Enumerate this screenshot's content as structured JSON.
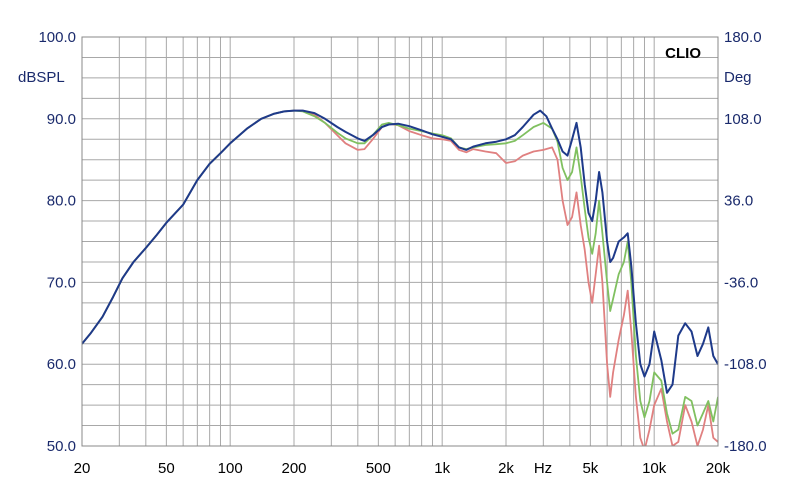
{
  "chart_data": {
    "type": "line",
    "title": "",
    "brand": "CLIO",
    "xlabel": "Hz",
    "ylabel": "dBSPL",
    "y2label": "Deg",
    "xscale": "log",
    "xlim": [
      20,
      20000
    ],
    "ylim": [
      50,
      100
    ],
    "y2lim": [
      -180,
      180
    ],
    "grid": true,
    "x_tick_labels": [
      {
        "value": 20,
        "label": "20"
      },
      {
        "value": 50,
        "label": "50"
      },
      {
        "value": 100,
        "label": "100"
      },
      {
        "value": 200,
        "label": "200"
      },
      {
        "value": 500,
        "label": "500"
      },
      {
        "value": 1000,
        "label": "1k"
      },
      {
        "value": 2000,
        "label": "2k"
      },
      {
        "value": 5000,
        "label": "5k"
      },
      {
        "value": 10000,
        "label": "10k"
      },
      {
        "value": 20000,
        "label": "20k"
      }
    ],
    "y_tick_labels": [
      "100.0",
      "90.0",
      "80.0",
      "70.0",
      "60.0",
      "50.0"
    ],
    "y2_tick_labels": [
      "180.0",
      "108.0",
      "36.0",
      "-36.0",
      "-108.0",
      "-180.0"
    ],
    "series": [
      {
        "color": "#e08080",
        "points": [
          [
            20,
            62.5
          ],
          [
            22,
            63.8
          ],
          [
            25,
            65.8
          ],
          [
            28,
            68.2
          ],
          [
            31,
            70.5
          ],
          [
            35,
            72.5
          ],
          [
            40,
            74.2
          ],
          [
            45,
            75.8
          ],
          [
            50,
            77.3
          ],
          [
            60,
            79.5
          ],
          [
            70,
            82.5
          ],
          [
            80,
            84.5
          ],
          [
            90,
            85.8
          ],
          [
            100,
            87
          ],
          [
            120,
            88.8
          ],
          [
            140,
            90
          ],
          [
            160,
            90.6
          ],
          [
            180,
            90.9
          ],
          [
            200,
            91
          ],
          [
            220,
            91
          ],
          [
            250,
            90.5
          ],
          [
            280,
            89.5
          ],
          [
            320,
            88
          ],
          [
            350,
            87
          ],
          [
            400,
            86.2
          ],
          [
            430,
            86.3
          ],
          [
            470,
            87.5
          ],
          [
            520,
            89
          ],
          [
            560,
            89.4
          ],
          [
            620,
            89.2
          ],
          [
            700,
            88.5
          ],
          [
            800,
            88
          ],
          [
            900,
            87.6
          ],
          [
            1000,
            87.5
          ],
          [
            1100,
            87.3
          ],
          [
            1200,
            86.2
          ],
          [
            1300,
            85.9
          ],
          [
            1400,
            86.3
          ],
          [
            1600,
            86
          ],
          [
            1800,
            85.8
          ],
          [
            2000,
            84.6
          ],
          [
            2200,
            84.8
          ],
          [
            2400,
            85.5
          ],
          [
            2700,
            86
          ],
          [
            3000,
            86.2
          ],
          [
            3300,
            86.5
          ],
          [
            3500,
            85
          ],
          [
            3700,
            80
          ],
          [
            3900,
            77
          ],
          [
            4100,
            78
          ],
          [
            4300,
            81
          ],
          [
            4500,
            77
          ],
          [
            4700,
            74
          ],
          [
            4900,
            70
          ],
          [
            5100,
            67.5
          ],
          [
            5300,
            71
          ],
          [
            5500,
            74.5
          ],
          [
            5700,
            70
          ],
          [
            6000,
            60
          ],
          [
            6200,
            56
          ],
          [
            6400,
            59
          ],
          [
            6800,
            63
          ],
          [
            7200,
            66
          ],
          [
            7500,
            69
          ],
          [
            7800,
            64
          ],
          [
            8200,
            56
          ],
          [
            8600,
            51
          ],
          [
            9000,
            49.5
          ],
          [
            9500,
            52
          ],
          [
            10000,
            55
          ],
          [
            10800,
            57
          ],
          [
            11500,
            53
          ],
          [
            12200,
            50
          ],
          [
            13000,
            50.5
          ],
          [
            14000,
            55
          ],
          [
            15000,
            53
          ],
          [
            16000,
            50
          ],
          [
            17000,
            52
          ],
          [
            18000,
            55
          ],
          [
            19000,
            51
          ],
          [
            20000,
            50.5
          ]
        ]
      },
      {
        "color": "#80c060",
        "points": [
          [
            20,
            62.5
          ],
          [
            22,
            63.8
          ],
          [
            25,
            65.8
          ],
          [
            28,
            68.2
          ],
          [
            31,
            70.5
          ],
          [
            35,
            72.5
          ],
          [
            40,
            74.2
          ],
          [
            45,
            75.8
          ],
          [
            50,
            77.3
          ],
          [
            60,
            79.5
          ],
          [
            70,
            82.5
          ],
          [
            80,
            84.5
          ],
          [
            90,
            85.8
          ],
          [
            100,
            87
          ],
          [
            120,
            88.8
          ],
          [
            140,
            90
          ],
          [
            160,
            90.6
          ],
          [
            180,
            90.9
          ],
          [
            200,
            91
          ],
          [
            220,
            90.9
          ],
          [
            250,
            90.3
          ],
          [
            280,
            89.5
          ],
          [
            320,
            88.3
          ],
          [
            350,
            87.6
          ],
          [
            400,
            87
          ],
          [
            430,
            87
          ],
          [
            470,
            88
          ],
          [
            520,
            89.3
          ],
          [
            560,
            89.5
          ],
          [
            620,
            89.2
          ],
          [
            700,
            88.8
          ],
          [
            800,
            88.5
          ],
          [
            900,
            88.2
          ],
          [
            1000,
            88
          ],
          [
            1100,
            87.6
          ],
          [
            1200,
            86.5
          ],
          [
            1300,
            86.3
          ],
          [
            1400,
            86.5
          ],
          [
            1600,
            86.8
          ],
          [
            1800,
            86.9
          ],
          [
            2000,
            87
          ],
          [
            2200,
            87.3
          ],
          [
            2400,
            88
          ],
          [
            2700,
            89
          ],
          [
            3000,
            89.5
          ],
          [
            3300,
            88.8
          ],
          [
            3500,
            87.2
          ],
          [
            3700,
            84
          ],
          [
            3900,
            82.5
          ],
          [
            4100,
            83.5
          ],
          [
            4300,
            86.5
          ],
          [
            4500,
            83
          ],
          [
            4700,
            79
          ],
          [
            4900,
            75.5
          ],
          [
            5100,
            73.5
          ],
          [
            5300,
            76
          ],
          [
            5500,
            80
          ],
          [
            5700,
            76
          ],
          [
            6000,
            70
          ],
          [
            6200,
            66.5
          ],
          [
            6400,
            68
          ],
          [
            6800,
            71
          ],
          [
            7200,
            72.5
          ],
          [
            7500,
            75
          ],
          [
            7800,
            70
          ],
          [
            8200,
            61
          ],
          [
            8600,
            55.5
          ],
          [
            9000,
            53.5
          ],
          [
            9500,
            55.5
          ],
          [
            10000,
            59
          ],
          [
            10800,
            58
          ],
          [
            11500,
            54
          ],
          [
            12200,
            51.5
          ],
          [
            13000,
            52
          ],
          [
            14000,
            56
          ],
          [
            15000,
            55.5
          ],
          [
            16000,
            52.5
          ],
          [
            17000,
            54
          ],
          [
            18000,
            55.5
          ],
          [
            19000,
            53
          ],
          [
            20000,
            56
          ]
        ]
      },
      {
        "color": "#1e3a8a",
        "points": [
          [
            20,
            62.5
          ],
          [
            22,
            63.8
          ],
          [
            25,
            65.8
          ],
          [
            28,
            68.2
          ],
          [
            31,
            70.5
          ],
          [
            35,
            72.5
          ],
          [
            40,
            74.2
          ],
          [
            45,
            75.8
          ],
          [
            50,
            77.3
          ],
          [
            60,
            79.5
          ],
          [
            70,
            82.5
          ],
          [
            80,
            84.5
          ],
          [
            90,
            85.8
          ],
          [
            100,
            87
          ],
          [
            120,
            88.8
          ],
          [
            140,
            90
          ],
          [
            160,
            90.6
          ],
          [
            180,
            90.9
          ],
          [
            200,
            91
          ],
          [
            220,
            91
          ],
          [
            250,
            90.7
          ],
          [
            280,
            90
          ],
          [
            320,
            89
          ],
          [
            350,
            88.4
          ],
          [
            400,
            87.6
          ],
          [
            430,
            87.3
          ],
          [
            470,
            88
          ],
          [
            520,
            89
          ],
          [
            560,
            89.3
          ],
          [
            620,
            89.4
          ],
          [
            700,
            89.1
          ],
          [
            800,
            88.6
          ],
          [
            900,
            88.1
          ],
          [
            1000,
            87.8
          ],
          [
            1100,
            87.5
          ],
          [
            1200,
            86.5
          ],
          [
            1300,
            86.2
          ],
          [
            1400,
            86.6
          ],
          [
            1600,
            87
          ],
          [
            1800,
            87.2
          ],
          [
            2000,
            87.5
          ],
          [
            2200,
            88
          ],
          [
            2400,
            89
          ],
          [
            2700,
            90.5
          ],
          [
            2900,
            91
          ],
          [
            3100,
            90.3
          ],
          [
            3300,
            88.8
          ],
          [
            3500,
            87.5
          ],
          [
            3700,
            86
          ],
          [
            3900,
            85.5
          ],
          [
            4100,
            87.5
          ],
          [
            4300,
            89.5
          ],
          [
            4500,
            86.5
          ],
          [
            4700,
            82
          ],
          [
            4900,
            78.5
          ],
          [
            5100,
            77.5
          ],
          [
            5300,
            80
          ],
          [
            5500,
            83.5
          ],
          [
            5700,
            81
          ],
          [
            6000,
            75
          ],
          [
            6200,
            72.5
          ],
          [
            6400,
            73
          ],
          [
            6800,
            75
          ],
          [
            7200,
            75.5
          ],
          [
            7500,
            76
          ],
          [
            7800,
            72
          ],
          [
            8200,
            65
          ],
          [
            8600,
            60
          ],
          [
            9000,
            58.5
          ],
          [
            9500,
            60
          ],
          [
            10000,
            64
          ],
          [
            10800,
            60.5
          ],
          [
            11500,
            56.5
          ],
          [
            12200,
            57.5
          ],
          [
            13000,
            63.5
          ],
          [
            14000,
            65
          ],
          [
            15000,
            64
          ],
          [
            16000,
            61
          ],
          [
            17000,
            62.5
          ],
          [
            18000,
            64.5
          ],
          [
            19000,
            61
          ],
          [
            20000,
            60
          ]
        ]
      }
    ]
  }
}
